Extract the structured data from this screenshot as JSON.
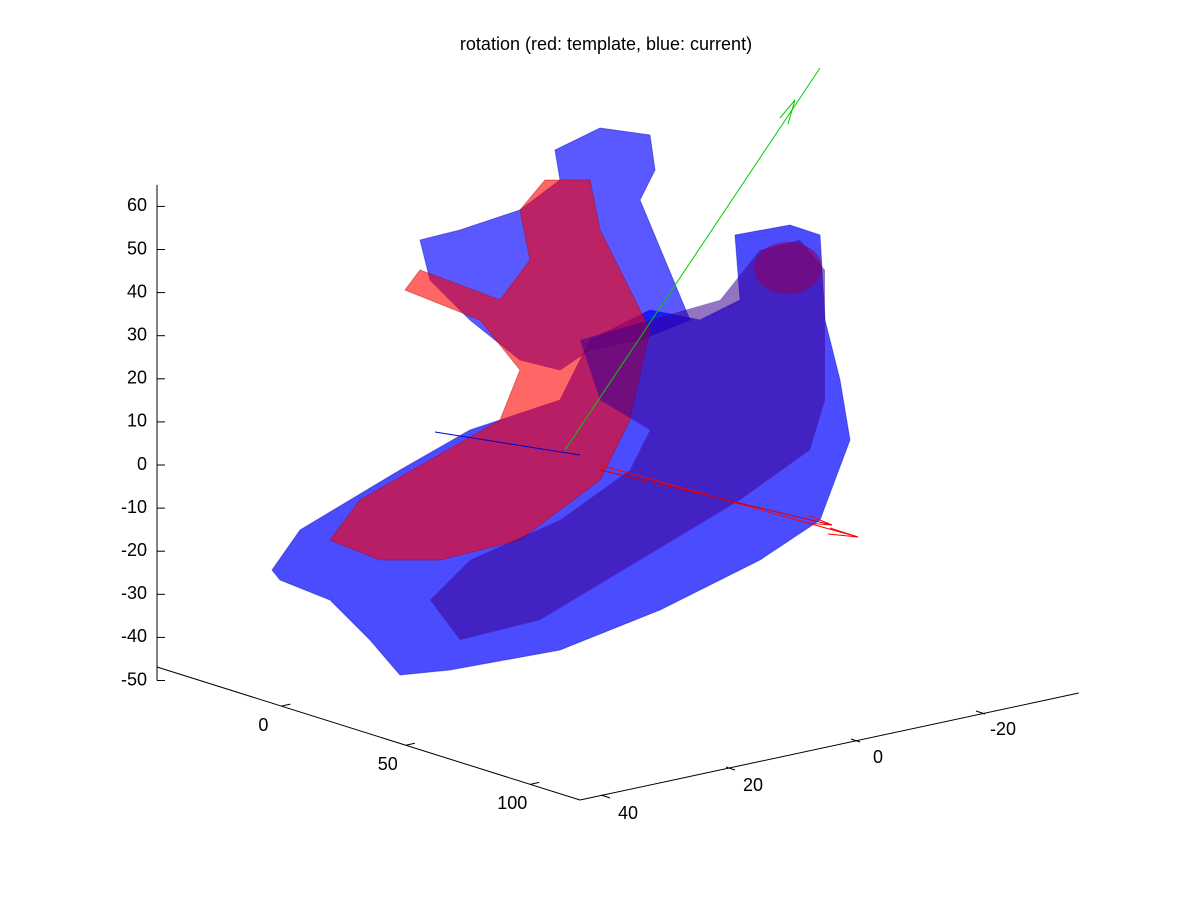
{
  "chart_data": {
    "type": "surface3d",
    "title": "rotation (red: template, blue: current)",
    "xlim": [
      -50,
      120
    ],
    "xticks": [
      0,
      50,
      100
    ],
    "ylim": [
      -35,
      45
    ],
    "yticks": [
      -20,
      0,
      20,
      40
    ],
    "zlim": [
      -50,
      65
    ],
    "zticks": [
      -50,
      -40,
      -30,
      -20,
      -10,
      0,
      10,
      20,
      30,
      40,
      50,
      60
    ]
  }
}
